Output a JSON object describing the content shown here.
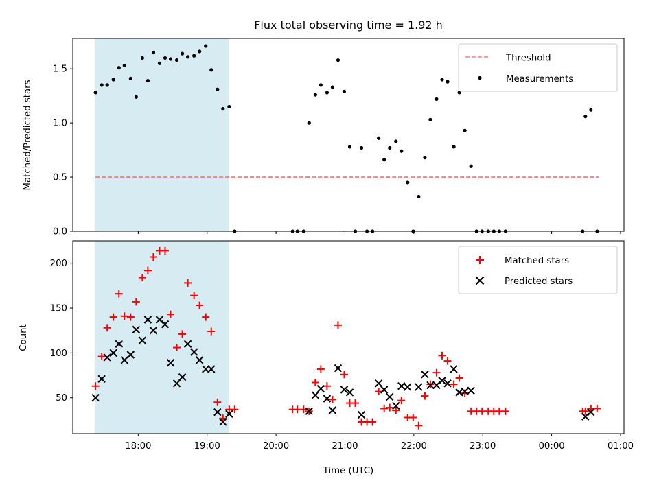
{
  "title": "Flux total observing time = 1.92 h",
  "colors": {
    "shade": "#add8e6",
    "threshold": "#ff7f7f",
    "matched": "#ff0000",
    "predicted": "#000000",
    "measurement": "#000000"
  },
  "chart_data": [
    {
      "type": "scatter",
      "ylabel": "Matched/Predicted stars",
      "xlabel": "",
      "xlim": [
        17.05,
        25.05
      ],
      "ylim": [
        0.0,
        1.78
      ],
      "yticks": [
        0.0,
        0.5,
        1.0,
        1.5
      ],
      "ytick_labels": [
        "0.0",
        "0.5",
        "1.0",
        "1.5"
      ],
      "grid": false,
      "legend_position": "top-right",
      "shaded_span": [
        17.38,
        19.32
      ],
      "threshold": {
        "name": "Threshold",
        "y": 0.5,
        "x": [
          17.38,
          24.68
        ],
        "style": "dashed",
        "color": "#ff7f7f"
      },
      "series": [
        {
          "name": "Measurements",
          "marker": "dot",
          "x": [
            17.38,
            17.47,
            17.55,
            17.64,
            17.72,
            17.8,
            17.89,
            17.97,
            18.06,
            18.14,
            18.22,
            18.31,
            18.39,
            18.47,
            18.56,
            18.64,
            18.72,
            18.81,
            18.89,
            18.98,
            19.06,
            19.15,
            19.23,
            19.32,
            19.4,
            20.24,
            20.31,
            20.4,
            20.48,
            20.57,
            20.65,
            20.74,
            20.82,
            20.9,
            20.99,
            21.07,
            21.15,
            21.24,
            21.32,
            21.4,
            21.49,
            21.57,
            21.65,
            21.74,
            21.82,
            21.91,
            21.99,
            22.07,
            22.16,
            22.24,
            22.33,
            22.41,
            22.49,
            22.58,
            22.66,
            22.74,
            22.83,
            22.91,
            22.99,
            23.08,
            23.16,
            23.24,
            23.33,
            24.45,
            24.49,
            24.57,
            24.66
          ],
          "values": [
            1.28,
            1.35,
            1.35,
            1.4,
            1.51,
            1.53,
            1.41,
            1.24,
            1.6,
            1.39,
            1.65,
            1.55,
            1.6,
            1.59,
            1.58,
            1.64,
            1.61,
            1.62,
            1.66,
            1.71,
            1.49,
            1.31,
            1.13,
            1.15,
            0,
            0,
            0,
            0,
            1.0,
            1.26,
            1.35,
            1.28,
            1.33,
            1.58,
            1.29,
            0.78,
            0,
            0.77,
            0,
            0,
            0.86,
            0.66,
            0.77,
            0.83,
            0.74,
            0.45,
            0,
            0.32,
            0.68,
            1.03,
            1.22,
            1.4,
            1.38,
            0.78,
            1.28,
            0.93,
            0.6,
            0,
            0,
            0,
            0,
            0,
            0,
            0,
            1.06,
            1.12,
            0
          ]
        }
      ]
    },
    {
      "type": "scatter",
      "ylabel": "Count",
      "xlabel": "Time (UTC)",
      "xlim": [
        17.05,
        25.05
      ],
      "ylim": [
        10,
        225
      ],
      "yticks": [
        50,
        100,
        150,
        200
      ],
      "ytick_labels": [
        "50",
        "100",
        "150",
        "200"
      ],
      "xticks": [
        18,
        19,
        20,
        21,
        22,
        23,
        24,
        25
      ],
      "xtick_labels": [
        "18:00",
        "19:00",
        "20:00",
        "21:00",
        "22:00",
        "23:00",
        "00:00",
        "01:00"
      ],
      "grid": false,
      "legend_position": "top-right",
      "shaded_span": [
        17.38,
        19.32
      ],
      "series": [
        {
          "name": "Matched stars",
          "marker": "plus",
          "color": "#ff0000",
          "x": [
            17.38,
            17.47,
            17.55,
            17.64,
            17.72,
            17.8,
            17.89,
            17.97,
            18.06,
            18.14,
            18.22,
            18.31,
            18.39,
            18.47,
            18.56,
            18.64,
            18.72,
            18.81,
            18.89,
            18.98,
            19.06,
            19.15,
            19.23,
            19.32,
            19.4,
            20.24,
            20.31,
            20.4,
            20.48,
            20.57,
            20.65,
            20.74,
            20.82,
            20.9,
            20.99,
            21.07,
            21.15,
            21.24,
            21.32,
            21.4,
            21.49,
            21.57,
            21.65,
            21.74,
            21.82,
            21.91,
            21.99,
            22.07,
            22.16,
            22.24,
            22.33,
            22.41,
            22.49,
            22.58,
            22.66,
            22.74,
            22.83,
            22.91,
            22.99,
            23.08,
            23.16,
            23.24,
            23.33,
            24.45,
            24.49,
            24.57,
            24.66
          ],
          "values": [
            63,
            96,
            128,
            140,
            166,
            141,
            140,
            157,
            184,
            192,
            207,
            214,
            214,
            143,
            106,
            121,
            178,
            164,
            153,
            140,
            124,
            45,
            27,
            37,
            37,
            37,
            37,
            37,
            35,
            67,
            82,
            63,
            48,
            131,
            76,
            44,
            44,
            23,
            23,
            23,
            57,
            38,
            39,
            36,
            47,
            28,
            28,
            19,
            52,
            65,
            78,
            97,
            91,
            65,
            72,
            55,
            35,
            35,
            35,
            35,
            35,
            35,
            35,
            35,
            35,
            38,
            38
          ]
        },
        {
          "name": "Predicted stars",
          "marker": "x",
          "color": "#000000",
          "x": [
            17.38,
            17.47,
            17.55,
            17.64,
            17.72,
            17.8,
            17.89,
            17.97,
            18.06,
            18.14,
            18.22,
            18.31,
            18.39,
            18.47,
            18.56,
            18.64,
            18.72,
            18.81,
            18.89,
            18.98,
            19.06,
            19.15,
            19.23,
            19.32,
            20.48,
            20.57,
            20.65,
            20.74,
            20.82,
            20.9,
            20.99,
            21.07,
            21.24,
            21.49,
            21.57,
            21.65,
            21.74,
            21.82,
            21.91,
            22.07,
            22.16,
            22.24,
            22.33,
            22.41,
            22.49,
            22.58,
            22.66,
            22.74,
            22.83,
            24.49,
            24.57
          ],
          "values": [
            50,
            71,
            95,
            100,
            110,
            92,
            98,
            126,
            114,
            137,
            125,
            137,
            132,
            89,
            66,
            73,
            110,
            101,
            92,
            82,
            82,
            34,
            23,
            32,
            35,
            53,
            60,
            49,
            36,
            83,
            59,
            56,
            31,
            66,
            59,
            51,
            41,
            63,
            62,
            62,
            76,
            64,
            64,
            69,
            66,
            82,
            56,
            57,
            58,
            29,
            34
          ]
        }
      ]
    }
  ]
}
